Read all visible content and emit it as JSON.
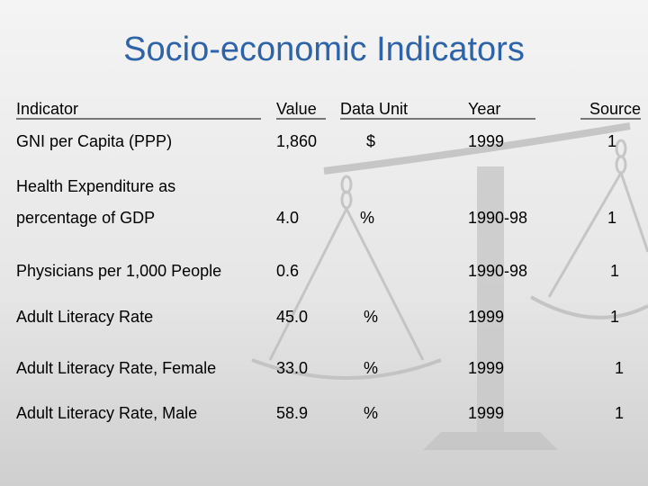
{
  "title": "Socio-economic Indicators",
  "table": {
    "headers": [
      "Indicator",
      "Value",
      "Data Unit",
      "Year",
      "Source"
    ],
    "rows": [
      {
        "indicator": [
          "GNI per Capita (PPP)"
        ],
        "value": "1,860",
        "unit": "$",
        "year": "1999",
        "source": "1"
      },
      {
        "indicator": [
          "Health Expenditure as",
          "percentage of GDP"
        ],
        "value": "4.0",
        "unit": "%",
        "year": "1990-98",
        "source": "1"
      },
      {
        "indicator": [
          "Physicians per 1,000 People"
        ],
        "value": "0.6",
        "unit": null,
        "year": "1990-98",
        "source": "1"
      },
      {
        "indicator": [
          "Adult Literacy Rate"
        ],
        "value": "45.0",
        "unit": "%",
        "year": "1999",
        "source": "1"
      },
      {
        "indicator": [
          "Adult Literacy Rate, Female"
        ],
        "value": "33.0",
        "unit": "%",
        "year": "1999",
        "source": "1"
      },
      {
        "indicator": [
          "Adult Literacy Rate, Male"
        ],
        "value": "58.9",
        "unit": "%",
        "year": "1999",
        "source": "1"
      }
    ]
  }
}
